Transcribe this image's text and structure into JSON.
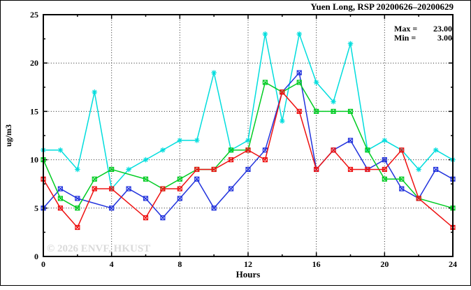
{
  "title": "Yuen Long, RSP 20200626–20200629",
  "annotation": {
    "max_label": "Max =",
    "max_value": "23.00",
    "min_label": "Min =",
    "min_value": "3.00"
  },
  "watermark": "© 2026 ENVF, HKUST",
  "chart_data": {
    "type": "line",
    "title": "Yuen Long, RSP 20200626–20200629",
    "xlabel": "Hours",
    "ylabel": "ug/m3",
    "xlim": [
      0,
      24
    ],
    "ylim": [
      0,
      25
    ],
    "xticks": [
      0,
      4,
      8,
      12,
      16,
      20,
      24
    ],
    "yticks": [
      0,
      5,
      10,
      15,
      20,
      25
    ],
    "x_minor_step": 2,
    "y_minor_step": 2.5,
    "grid": true,
    "legend_position": "none",
    "stat_max": 23.0,
    "stat_min": 3.0,
    "x": [
      0,
      1,
      2,
      3,
      4,
      5,
      6,
      7,
      8,
      9,
      10,
      11,
      12,
      13,
      14,
      15,
      16,
      17,
      18,
      19,
      20,
      21,
      22,
      23,
      24
    ],
    "series": [
      {
        "name": "cyan",
        "color": "#00dddd",
        "marker": "star",
        "values": [
          11,
          11,
          9,
          17,
          7,
          9,
          10,
          11,
          12,
          12,
          19,
          11,
          12,
          23,
          14,
          23,
          18,
          16,
          22,
          11,
          12,
          11,
          9,
          11,
          10
        ]
      },
      {
        "name": "blue",
        "color": "#2233dd",
        "marker": "boxed-x",
        "values": [
          5,
          7,
          6,
          null,
          5,
          7,
          6,
          4,
          6,
          8,
          5,
          7,
          9,
          11,
          17,
          19,
          9,
          11,
          12,
          9,
          10,
          7,
          6,
          9,
          8
        ]
      },
      {
        "name": "green",
        "color": "#00cc22",
        "marker": "boxed-x",
        "values": [
          10,
          6,
          5,
          8,
          9,
          null,
          8,
          7,
          8,
          9,
          9,
          11,
          11,
          18,
          17,
          18,
          15,
          15,
          15,
          11,
          8,
          8,
          6,
          null,
          5
        ]
      },
      {
        "name": "red",
        "color": "#ee1111",
        "marker": "boxed-x",
        "values": [
          8,
          5,
          3,
          7,
          7,
          null,
          4,
          7,
          7,
          9,
          9,
          10,
          11,
          10,
          17,
          15,
          9,
          11,
          9,
          9,
          9,
          11,
          6,
          null,
          3
        ]
      }
    ]
  }
}
